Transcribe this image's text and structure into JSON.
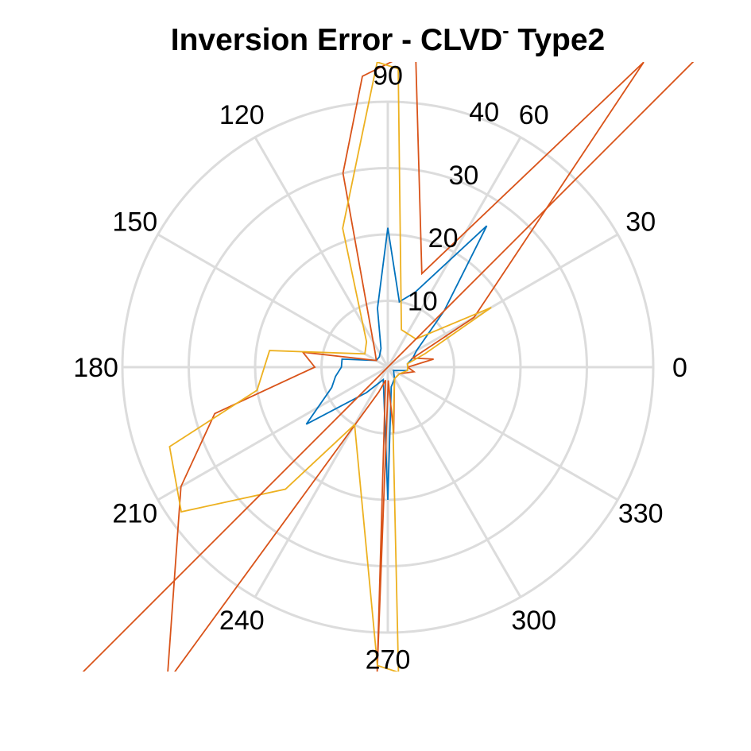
{
  "chart_data": {
    "type": "polar-line",
    "title": "Inversion Error - CLVD",
    "title_sup": "-",
    "title_suffix": " Type2",
    "theta_ticks": [
      "0",
      "30",
      "60",
      "90",
      "120",
      "150",
      "180",
      "210",
      "240",
      "270",
      "300",
      "330"
    ],
    "r_ticks": [
      "10",
      "20",
      "30",
      "40"
    ],
    "rlim": [
      0,
      40
    ],
    "grid": true,
    "grid_color": "#dcdcdc",
    "series": [
      {
        "color": "#0072BD",
        "points": [
          [
            0,
            3
          ],
          [
            10,
            3
          ],
          [
            20,
            4
          ],
          [
            30,
            5
          ],
          [
            45,
            12
          ],
          [
            55,
            26
          ],
          [
            70,
            12
          ],
          [
            80,
            10
          ],
          [
            90,
            21
          ],
          [
            100,
            9
          ],
          [
            110,
            3
          ],
          [
            130,
            2
          ],
          [
            150,
            2
          ],
          [
            170,
            7
          ],
          [
            180,
            7
          ],
          [
            190,
            8
          ],
          [
            200,
            9
          ],
          [
            215,
            15
          ],
          [
            230,
            5
          ],
          [
            250,
            2
          ],
          [
            270,
            20
          ],
          [
            280,
            3
          ],
          [
            300,
            2
          ],
          [
            330,
            1
          ],
          [
            350,
            3
          ],
          [
            0,
            3
          ]
        ]
      },
      {
        "color": "#D95319",
        "points": [
          [
            0,
            3
          ],
          [
            10,
            7
          ],
          [
            20,
            4
          ],
          [
            30,
            15
          ],
          [
            50,
            60
          ],
          [
            70,
            15
          ],
          [
            85,
            48
          ],
          [
            95,
            44
          ],
          [
            103,
            30
          ],
          [
            130,
            3
          ],
          [
            150,
            2
          ],
          [
            170,
            13
          ],
          [
            180,
            11
          ],
          [
            195,
            27
          ],
          [
            210,
            36
          ],
          [
            235,
            58
          ],
          [
            250,
            4
          ],
          [
            260,
            2
          ],
          [
            268,
            46
          ],
          [
            272,
            2
          ],
          [
            275,
            10
          ],
          [
            300,
            2
          ],
          [
            330,
            2
          ],
          [
            350,
            4
          ],
          [
            0,
            3
          ]
        ]
      },
      {
        "color": "#EDB120",
        "points": [
          [
            0,
            3
          ],
          [
            10,
            3
          ],
          [
            20,
            6
          ],
          [
            30,
            18
          ],
          [
            45,
            6
          ],
          [
            70,
            6
          ],
          [
            88,
            45
          ],
          [
            92,
            46
          ],
          [
            108,
            22
          ],
          [
            130,
            5
          ],
          [
            150,
            4
          ],
          [
            172,
            18
          ],
          [
            190,
            20
          ],
          [
            200,
            35
          ],
          [
            215,
            38
          ],
          [
            230,
            24
          ],
          [
            240,
            10
          ],
          [
            268,
            45
          ],
          [
            272,
            46
          ],
          [
            275,
            9
          ],
          [
            300,
            2
          ],
          [
            330,
            2
          ],
          [
            350,
            3
          ],
          [
            0,
            3
          ]
        ]
      },
      {
        "color": "#D95319",
        "points": [
          [
            225,
            80
          ],
          [
            45,
            90
          ]
        ]
      }
    ]
  }
}
